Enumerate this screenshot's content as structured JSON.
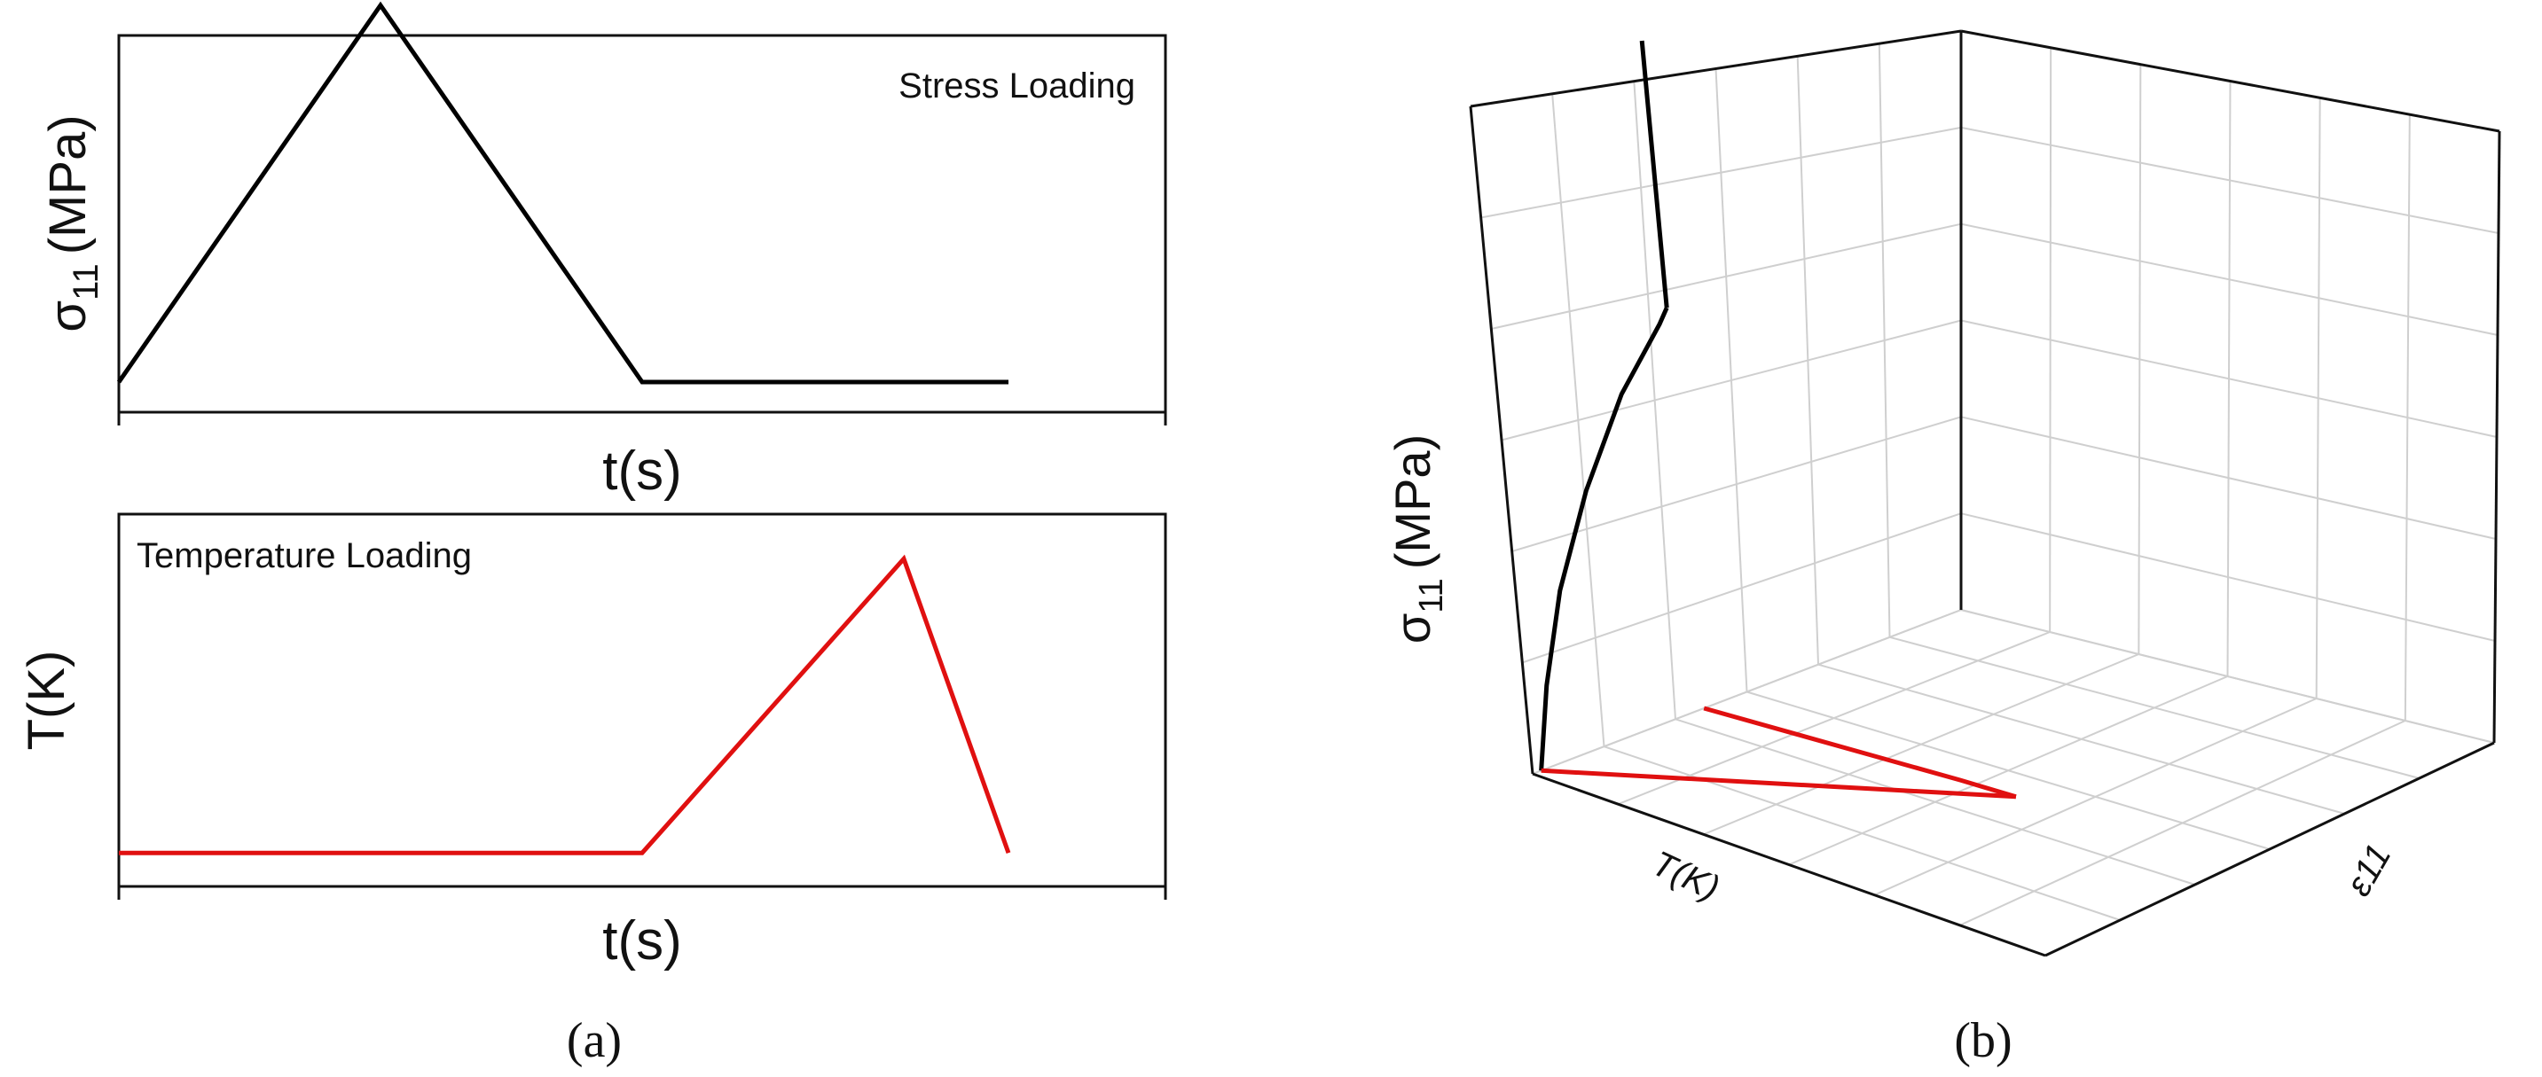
{
  "panel_a_label": "(a)",
  "panel_b_label": "(b)",
  "chart_data": [
    {
      "type": "line",
      "panel": "a-top",
      "title": "Stress Loading",
      "xlabel": "t(s)",
      "ylabel_main": "σ",
      "ylabel_sub": "11",
      "ylabel_unit": "(MPa)",
      "xlim": [
        0,
        10
      ],
      "ylim": [
        0,
        10
      ],
      "series": [
        {
          "color": "#000000",
          "x": [
            0,
            2.5,
            5,
            8.5
          ],
          "y": [
            0.8,
            10.8,
            0.8,
            0.8
          ]
        }
      ]
    },
    {
      "type": "line",
      "panel": "a-bottom",
      "title": "Temperature Loading",
      "xlabel": "t(s)",
      "ylabel_main": "T(K)",
      "xlim": [
        0,
        10
      ],
      "ylim": [
        0,
        10
      ],
      "series": [
        {
          "color": "#e01010",
          "x": [
            0,
            5,
            7.5,
            8.5
          ],
          "y": [
            0.9,
            0.9,
            8.8,
            0.9
          ]
        }
      ]
    },
    {
      "type": "line",
      "panel": "b",
      "projection": "3d",
      "xlabel": "T(K)",
      "ylabel": "ε11",
      "zlabel_main": "σ",
      "zlabel_sub": "11",
      "zlabel_unit": "(MPa)",
      "grid": true,
      "series": [
        {
          "color": "#000000",
          "note_points": "(T, eps, sigma) in normalized 0-1 box units",
          "x": [
            0.0,
            0.0,
            0.0,
            0.0,
            0.0,
            0.0,
            0.0
          ],
          "y": [
            0.02,
            0.05,
            0.1,
            0.18,
            0.28,
            0.38,
            0.4
          ],
          "z": [
            0.0,
            0.12,
            0.25,
            0.38,
            0.5,
            0.58,
            0.6
          ]
        },
        {
          "color": "#000000",
          "x": [
            0.0,
            0.0
          ],
          "y": [
            0.4,
            0.4
          ],
          "z": [
            0.6,
            1.0
          ]
        },
        {
          "color": "#e01010",
          "x": [
            0.0,
            0.15,
            0.3,
            0.45,
            0.55
          ],
          "y": [
            0.4,
            0.42,
            0.44,
            0.46,
            0.47
          ],
          "z": [
            0.0,
            0.0,
            0.0,
            0.0,
            0.0
          ]
        },
        {
          "color": "#e01010",
          "x": [
            0.0,
            0.55
          ],
          "y": [
            0.02,
            0.47
          ],
          "z": [
            0.0,
            0.0
          ]
        }
      ]
    }
  ]
}
